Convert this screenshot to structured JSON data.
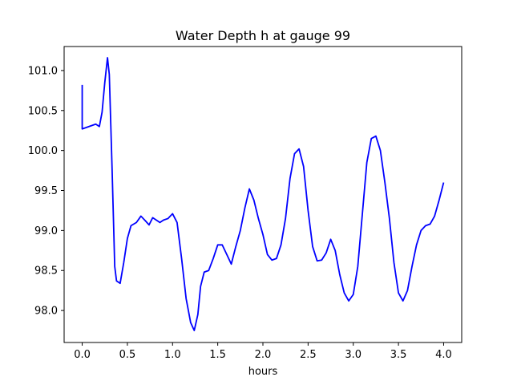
{
  "chart_data": {
    "type": "line",
    "title": "Water Depth h at gauge 99",
    "xlabel": "hours",
    "ylabel": "",
    "xlim": [
      -0.2,
      4.2
    ],
    "ylim": [
      97.6,
      101.3
    ],
    "xticks": [
      0.0,
      0.5,
      1.0,
      1.5,
      2.0,
      2.5,
      3.0,
      3.5,
      4.0
    ],
    "xtick_labels": [
      "0.0",
      "0.5",
      "1.0",
      "1.5",
      "2.0",
      "2.5",
      "3.0",
      "3.5",
      "4.0"
    ],
    "yticks": [
      98.0,
      98.5,
      99.0,
      99.5,
      100.0,
      100.5,
      101.0
    ],
    "ytick_labels": [
      "98.0",
      "98.5",
      "99.0",
      "99.5",
      "100.0",
      "100.5",
      "101.0"
    ],
    "grid": false,
    "series": [
      {
        "color": "#0000ff",
        "points": [
          [
            0.0,
            100.82
          ],
          [
            0.0,
            100.27
          ],
          [
            0.05,
            100.29
          ],
          [
            0.1,
            100.31
          ],
          [
            0.15,
            100.33
          ],
          [
            0.19,
            100.3
          ],
          [
            0.22,
            100.48
          ],
          [
            0.25,
            100.85
          ],
          [
            0.28,
            101.16
          ],
          [
            0.3,
            100.95
          ],
          [
            0.33,
            99.8
          ],
          [
            0.36,
            98.55
          ],
          [
            0.38,
            98.37
          ],
          [
            0.42,
            98.34
          ],
          [
            0.46,
            98.6
          ],
          [
            0.5,
            98.9
          ],
          [
            0.54,
            99.06
          ],
          [
            0.6,
            99.1
          ],
          [
            0.65,
            99.18
          ],
          [
            0.7,
            99.12
          ],
          [
            0.74,
            99.07
          ],
          [
            0.78,
            99.16
          ],
          [
            0.82,
            99.13
          ],
          [
            0.86,
            99.1
          ],
          [
            0.9,
            99.13
          ],
          [
            0.95,
            99.15
          ],
          [
            1.0,
            99.21
          ],
          [
            1.05,
            99.1
          ],
          [
            1.1,
            98.65
          ],
          [
            1.15,
            98.15
          ],
          [
            1.2,
            97.85
          ],
          [
            1.24,
            97.75
          ],
          [
            1.28,
            97.95
          ],
          [
            1.31,
            98.3
          ],
          [
            1.35,
            98.48
          ],
          [
            1.4,
            98.5
          ],
          [
            1.45,
            98.65
          ],
          [
            1.5,
            98.82
          ],
          [
            1.55,
            98.82
          ],
          [
            1.6,
            98.7
          ],
          [
            1.65,
            98.58
          ],
          [
            1.7,
            98.8
          ],
          [
            1.75,
            99.0
          ],
          [
            1.8,
            99.28
          ],
          [
            1.85,
            99.52
          ],
          [
            1.9,
            99.38
          ],
          [
            1.95,
            99.15
          ],
          [
            2.0,
            98.95
          ],
          [
            2.05,
            98.7
          ],
          [
            2.1,
            98.63
          ],
          [
            2.15,
            98.65
          ],
          [
            2.2,
            98.82
          ],
          [
            2.25,
            99.15
          ],
          [
            2.3,
            99.65
          ],
          [
            2.35,
            99.96
          ],
          [
            2.4,
            100.02
          ],
          [
            2.45,
            99.8
          ],
          [
            2.5,
            99.25
          ],
          [
            2.55,
            98.8
          ],
          [
            2.6,
            98.62
          ],
          [
            2.65,
            98.63
          ],
          [
            2.7,
            98.72
          ],
          [
            2.75,
            98.89
          ],
          [
            2.8,
            98.75
          ],
          [
            2.85,
            98.45
          ],
          [
            2.9,
            98.22
          ],
          [
            2.95,
            98.12
          ],
          [
            3.0,
            98.2
          ],
          [
            3.05,
            98.55
          ],
          [
            3.1,
            99.2
          ],
          [
            3.15,
            99.85
          ],
          [
            3.2,
            100.15
          ],
          [
            3.25,
            100.18
          ],
          [
            3.3,
            100.0
          ],
          [
            3.35,
            99.6
          ],
          [
            3.4,
            99.15
          ],
          [
            3.45,
            98.6
          ],
          [
            3.5,
            98.22
          ],
          [
            3.55,
            98.12
          ],
          [
            3.6,
            98.25
          ],
          [
            3.65,
            98.55
          ],
          [
            3.7,
            98.82
          ],
          [
            3.75,
            99.0
          ],
          [
            3.8,
            99.06
          ],
          [
            3.85,
            99.08
          ],
          [
            3.9,
            99.18
          ],
          [
            3.95,
            99.38
          ],
          [
            4.0,
            99.6
          ]
        ]
      }
    ]
  }
}
